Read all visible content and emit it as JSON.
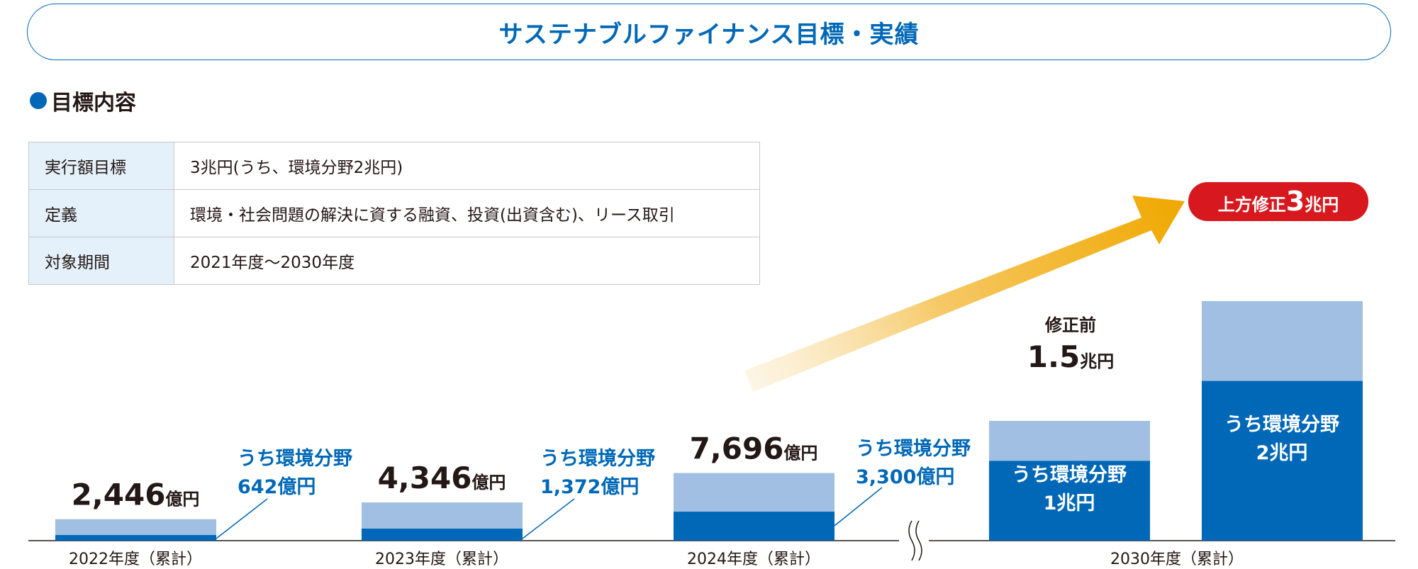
{
  "title": "サステナブルファイナンス目標・実績",
  "section_heading": "目標内容",
  "target_table": [
    {
      "label": "実行額目標",
      "value": "3兆円(うち、環境分野2兆円)"
    },
    {
      "label": "定義",
      "value": "環境・社会問題の解決に資する融資、投資(出資含む)、リース取引"
    },
    {
      "label": "対象期間",
      "value": "2021年度〜2030年度"
    }
  ],
  "colors": {
    "accent": "#0068b7",
    "env": "#0068b7",
    "total": "#a0bfe2",
    "badge": "#d7191f",
    "arrow": "#f0a800"
  },
  "chart_data": {
    "type": "bar",
    "stacked": true,
    "categories": [
      "2022年度（累計）",
      "2023年度（累計）",
      "2024年度（累計）",
      "2030年度（累計）",
      "2030年度（累計）"
    ],
    "unit": "億円",
    "series": [
      {
        "values": [
          642,
          1372,
          3300,
          10000,
          20000
        ]
      },
      {
        "values": [
          1804,
          2974,
          4396,
          5000,
          10000
        ]
      }
    ],
    "totals": [
      2446,
      4346,
      7696,
      15000,
      30000
    ],
    "labels": {
      "totals": [
        {
          "num": "2,446",
          "unit": "億円"
        },
        {
          "num": "4,346",
          "unit": "億円"
        },
        {
          "num": "7,696",
          "unit": "億円"
        },
        {
          "num": "1.5",
          "unit": "兆円"
        }
      ],
      "env_callouts": [
        {
          "line1": "うち環境分野",
          "line2": "642億円"
        },
        {
          "line1": "うち環境分野",
          "line2": "1,372億円"
        },
        {
          "line1": "うち環境分野",
          "line2": "3,300億円"
        }
      ],
      "env_inside": [
        {
          "line1": "うち環境分野",
          "line2": "1兆円"
        },
        {
          "line1": "うち環境分野",
          "line2": "2兆円"
        }
      ],
      "before_revision": "修正前",
      "upward_revision_badge": {
        "prefix": "上方修正",
        "num": "3",
        "unit": "兆円"
      }
    },
    "x_axis_break": true,
    "ylim": [
      0,
      30000
    ]
  }
}
